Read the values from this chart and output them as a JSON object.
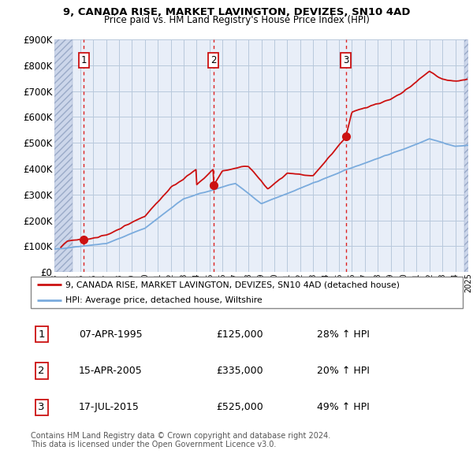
{
  "title1": "9, CANADA RISE, MARKET LAVINGTON, DEVIZES, SN10 4AD",
  "title2": "Price paid vs. HM Land Registry's House Price Index (HPI)",
  "ylim": [
    0,
    900000
  ],
  "yticks": [
    0,
    100000,
    200000,
    300000,
    400000,
    500000,
    600000,
    700000,
    800000,
    900000
  ],
  "ytick_labels": [
    "£0",
    "£100K",
    "£200K",
    "£300K",
    "£400K",
    "£500K",
    "£600K",
    "£700K",
    "£800K",
    "£900K"
  ],
  "plot_bg_color": "#e8eef8",
  "sale_points": [
    {
      "year": 1995.27,
      "price": 125000,
      "label": "1"
    },
    {
      "year": 2005.29,
      "price": 335000,
      "label": "2"
    },
    {
      "year": 2015.54,
      "price": 525000,
      "label": "3"
    }
  ],
  "vline_color": "#dd2222",
  "dot_color": "#cc1111",
  "line_color": "#cc1111",
  "hpi_color": "#7aabdd",
  "legend_label1": "9, CANADA RISE, MARKET LAVINGTON, DEVIZES, SN10 4AD (detached house)",
  "legend_label2": "HPI: Average price, detached house, Wiltshire",
  "table_rows": [
    {
      "num": "1",
      "date": "07-APR-1995",
      "price": "£125,000",
      "hpi": "28% ↑ HPI"
    },
    {
      "num": "2",
      "date": "15-APR-2005",
      "price": "£335,000",
      "hpi": "20% ↑ HPI"
    },
    {
      "num": "3",
      "date": "17-JUL-2015",
      "price": "£525,000",
      "hpi": "49% ↑ HPI"
    }
  ],
  "footnote": "Contains HM Land Registry data © Crown copyright and database right 2024.\nThis data is licensed under the Open Government Licence v3.0.",
  "xmin": 1993,
  "xmax": 2025
}
